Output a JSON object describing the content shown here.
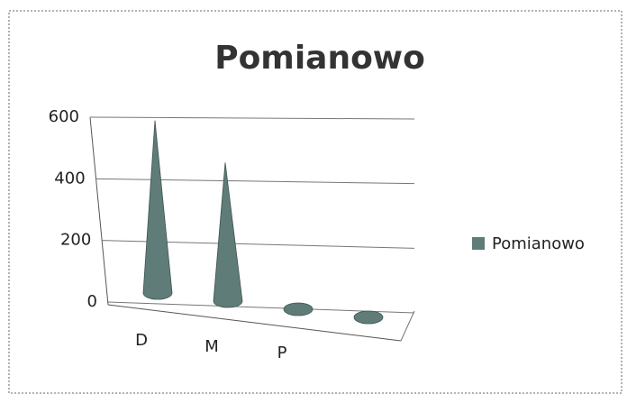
{
  "chart_data": {
    "type": "cone",
    "title": "Pomianowo",
    "categories": [
      "D",
      "M",
      "P",
      null
    ],
    "series": [
      {
        "name": "Pomianowo",
        "color": "#5f7c78",
        "values": [
          560,
          450,
          0,
          0
        ]
      }
    ],
    "ylim": [
      0,
      600
    ],
    "yticks": [
      0,
      200,
      400,
      600
    ],
    "grid": true,
    "legend": "right"
  }
}
